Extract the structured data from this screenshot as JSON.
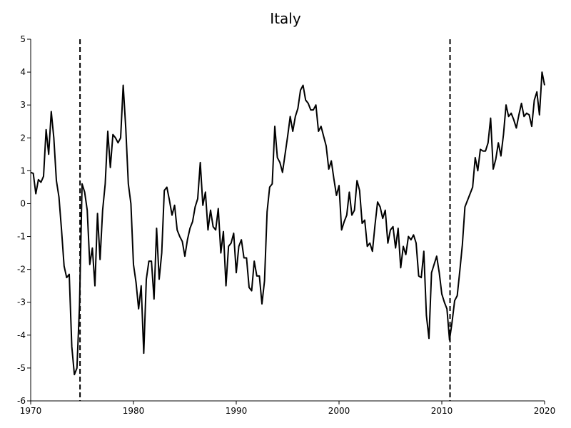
{
  "chart_data": {
    "type": "line",
    "title": "Italy",
    "xlabel": "",
    "ylabel": "",
    "xlim": [
      1970,
      2020
    ],
    "ylim": [
      -6,
      5
    ],
    "x_ticks": [
      1970,
      1980,
      1990,
      2000,
      2010,
      2020
    ],
    "y_ticks": [
      5,
      4,
      3,
      2,
      1,
      0,
      -1,
      -2,
      -3,
      -4,
      -5,
      -6
    ],
    "grid": false,
    "legend": "none",
    "vlines": [
      {
        "x": 1974.8,
        "style": "dashed"
      },
      {
        "x": 2010.8,
        "style": "dashed"
      }
    ],
    "series": [
      {
        "color": "#000000",
        "x": [
          1970.0,
          1970.25,
          1970.5,
          1970.75,
          1971.0,
          1971.25,
          1971.5,
          1971.75,
          1972.0,
          1972.25,
          1972.5,
          1972.75,
          1973.0,
          1973.25,
          1973.5,
          1973.75,
          1974.0,
          1974.25,
          1974.5,
          1974.75,
          1975.0,
          1975.25,
          1975.5,
          1975.75,
          1976.0,
          1976.25,
          1976.5,
          1976.75,
          1977.0,
          1977.25,
          1977.5,
          1977.75,
          1978.0,
          1978.25,
          1978.5,
          1978.75,
          1979.0,
          1979.25,
          1979.5,
          1979.75,
          1980.0,
          1980.25,
          1980.5,
          1980.75,
          1981.0,
          1981.25,
          1981.5,
          1981.75,
          1982.0,
          1982.25,
          1982.5,
          1982.75,
          1983.0,
          1983.25,
          1983.5,
          1983.75,
          1984.0,
          1984.25,
          1984.5,
          1984.75,
          1985.0,
          1985.25,
          1985.5,
          1985.75,
          1986.0,
          1986.25,
          1986.5,
          1986.75,
          1987.0,
          1987.25,
          1987.5,
          1987.75,
          1988.0,
          1988.25,
          1988.5,
          1988.75,
          1989.0,
          1989.25,
          1989.5,
          1989.75,
          1990.0,
          1990.25,
          1990.5,
          1990.75,
          1991.0,
          1991.25,
          1991.5,
          1991.75,
          1992.0,
          1992.25,
          1992.5,
          1992.75,
          1993.0,
          1993.25,
          1993.5,
          1993.75,
          1994.0,
          1994.25,
          1994.5,
          1994.75,
          1995.0,
          1995.25,
          1995.5,
          1995.75,
          1996.0,
          1996.25,
          1996.5,
          1996.75,
          1997.0,
          1997.25,
          1997.5,
          1997.75,
          1998.0,
          1998.25,
          1998.5,
          1998.75,
          1999.0,
          1999.25,
          1999.5,
          1999.75,
          2000.0,
          2000.25,
          2000.5,
          2000.75,
          2001.0,
          2001.25,
          2001.5,
          2001.75,
          2002.0,
          2002.25,
          2002.5,
          2002.75,
          2003.0,
          2003.25,
          2003.5,
          2003.75,
          2004.0,
          2004.25,
          2004.5,
          2004.75,
          2005.0,
          2005.25,
          2005.5,
          2005.75,
          2006.0,
          2006.25,
          2006.5,
          2006.75,
          2007.0,
          2007.25,
          2007.5,
          2007.75,
          2008.0,
          2008.25,
          2008.5,
          2008.75,
          2009.0,
          2009.25,
          2009.5,
          2009.75,
          2010.0,
          2010.25,
          2010.5,
          2010.75,
          2011.0,
          2011.25,
          2011.5,
          2011.75,
          2012.0,
          2012.25,
          2012.5,
          2012.75,
          2013.0,
          2013.25,
          2013.5,
          2013.75,
          2014.0,
          2014.25,
          2014.5,
          2014.75,
          2015.0,
          2015.25,
          2015.5,
          2015.75,
          2016.0,
          2016.25,
          2016.5,
          2016.75,
          2017.0,
          2017.25,
          2017.5,
          2017.75,
          2018.0,
          2018.25,
          2018.5,
          2018.75,
          2019.0,
          2019.25,
          2019.5,
          2019.75,
          2020.0
        ],
        "values": [
          0.95,
          0.92,
          0.3,
          0.73,
          0.65,
          0.83,
          2.25,
          1.5,
          2.8,
          2.0,
          0.7,
          0.2,
          -0.8,
          -1.9,
          -2.25,
          -2.15,
          -4.35,
          -5.2,
          -5.0,
          -3.1,
          0.6,
          0.35,
          -0.2,
          -1.85,
          -1.35,
          -2.5,
          -0.3,
          -1.7,
          -0.2,
          0.6,
          2.2,
          1.1,
          2.1,
          2.0,
          1.85,
          2.0,
          3.6,
          2.3,
          0.6,
          0.0,
          -1.85,
          -2.4,
          -3.2,
          -2.5,
          -4.55,
          -2.3,
          -1.75,
          -1.75,
          -2.9,
          -0.75,
          -2.3,
          -1.5,
          0.4,
          0.5,
          0.1,
          -0.35,
          -0.05,
          -0.8,
          -1.0,
          -1.15,
          -1.6,
          -1.1,
          -0.75,
          -0.55,
          -0.1,
          0.15,
          1.25,
          -0.05,
          0.35,
          -0.8,
          -0.2,
          -0.7,
          -0.8,
          -0.15,
          -1.5,
          -0.85,
          -2.5,
          -1.3,
          -1.2,
          -0.9,
          -2.1,
          -1.3,
          -1.1,
          -1.65,
          -1.65,
          -2.55,
          -2.65,
          -1.75,
          -2.2,
          -2.2,
          -3.05,
          -2.35,
          -0.25,
          0.5,
          0.6,
          2.35,
          1.4,
          1.25,
          0.95,
          1.5,
          2.05,
          2.65,
          2.2,
          2.65,
          2.9,
          3.45,
          3.6,
          3.15,
          3.05,
          2.85,
          2.85,
          3.0,
          2.2,
          2.35,
          2.05,
          1.75,
          1.05,
          1.3,
          0.75,
          0.25,
          0.55,
          -0.8,
          -0.55,
          -0.35,
          0.35,
          -0.35,
          -0.2,
          0.7,
          0.4,
          -0.6,
          -0.5,
          -1.3,
          -1.2,
          -1.45,
          -0.65,
          0.05,
          -0.1,
          -0.45,
          -0.2,
          -1.2,
          -0.8,
          -0.7,
          -1.35,
          -0.75,
          -1.95,
          -1.3,
          -1.55,
          -1.0,
          -1.1,
          -0.95,
          -1.2,
          -2.2,
          -2.25,
          -1.45,
          -3.4,
          -4.1,
          -2.1,
          -1.85,
          -1.6,
          -2.1,
          -2.75,
          -3.0,
          -3.2,
          -4.15,
          -3.6,
          -2.95,
          -2.8,
          -2.05,
          -1.25,
          -0.1,
          0.1,
          0.3,
          0.5,
          1.4,
          1.0,
          1.65,
          1.6,
          1.6,
          1.85,
          2.6,
          1.05,
          1.35,
          1.85,
          1.45,
          2.1,
          3.0,
          2.65,
          2.75,
          2.55,
          2.3,
          2.7,
          3.05,
          2.65,
          2.75,
          2.7,
          2.35,
          3.15,
          3.4,
          2.7,
          4.0,
          3.6
        ]
      }
    ]
  }
}
